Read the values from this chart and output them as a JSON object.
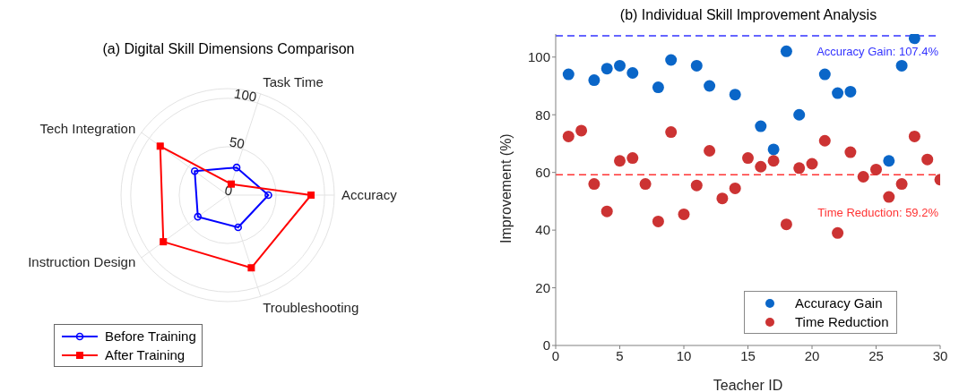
{
  "chart_data": [
    {
      "type": "radar",
      "title": "(a) Digital Skill Dimensions Comparison",
      "categories": [
        "Task Time",
        "Accuracy",
        "Troubleshooting",
        "Instruction Design",
        "Tech Integration"
      ],
      "series": [
        {
          "name": "Before Training",
          "color": "#0000ff",
          "marker": "circle",
          "values": [
            30,
            42,
            35,
            38,
            42
          ]
        },
        {
          "name": "After Training",
          "color": "#ff0000",
          "marker": "square",
          "values": [
            12,
            86,
            79,
            82,
            86
          ]
        }
      ],
      "ylim": [
        0,
        110
      ],
      "yticks": [
        0,
        50,
        100
      ],
      "grid": true,
      "legend": "bottom left"
    },
    {
      "type": "scatter",
      "title": "(b) Individual Skill Improvement Analysis",
      "xlabel": "Teacher ID",
      "ylabel": "Improvement (%)",
      "series": [
        {
          "name": "Accuracy Gain",
          "color": "#0a66c8",
          "marker": "circle",
          "x": [
            1,
            3,
            4,
            5,
            6,
            8,
            9,
            11,
            12,
            14,
            16,
            17,
            18,
            19,
            21,
            22,
            23,
            26,
            27,
            28
          ],
          "values": [
            94,
            92,
            96,
            97,
            94.5,
            89.5,
            99,
            97,
            90,
            87,
            76,
            68,
            102,
            80,
            94,
            87.5,
            88,
            64,
            97,
            106.5
          ]
        },
        {
          "name": "Time Reduction",
          "color": "#cc3333",
          "marker": "circle",
          "x": [
            1,
            2,
            3,
            4,
            5,
            6,
            7,
            8,
            9,
            10,
            11,
            12,
            13,
            14,
            15,
            16,
            17,
            18,
            19,
            20,
            21,
            22,
            23,
            24,
            25,
            26,
            27,
            28,
            29,
            30
          ],
          "values": [
            72.5,
            74.5,
            56,
            46.5,
            64,
            65,
            56,
            43,
            74,
            45.5,
            55.5,
            67.5,
            51,
            54.5,
            65,
            62,
            64,
            42,
            61.5,
            63,
            71,
            39,
            67,
            58.5,
            61,
            51.5,
            56,
            72.5,
            64.5,
            57.5
          ]
        }
      ],
      "xlim": [
        0,
        30
      ],
      "xticks": [
        0,
        5,
        10,
        15,
        20,
        25,
        30
      ],
      "ylim": [
        0,
        108
      ],
      "yticks": [
        0,
        20,
        40,
        60,
        80,
        100
      ],
      "legend": "bottom right",
      "ref_lines": [
        {
          "axis": "y",
          "value": 107.4,
          "label": "Accuracy Gain: 107.4%",
          "color": "#3333ff",
          "line_style": "dashed"
        },
        {
          "axis": "y",
          "value": 59.2,
          "label": "Time Reduction: 59.2%",
          "color": "#ff3333",
          "line_style": "dashed"
        }
      ]
    }
  ]
}
